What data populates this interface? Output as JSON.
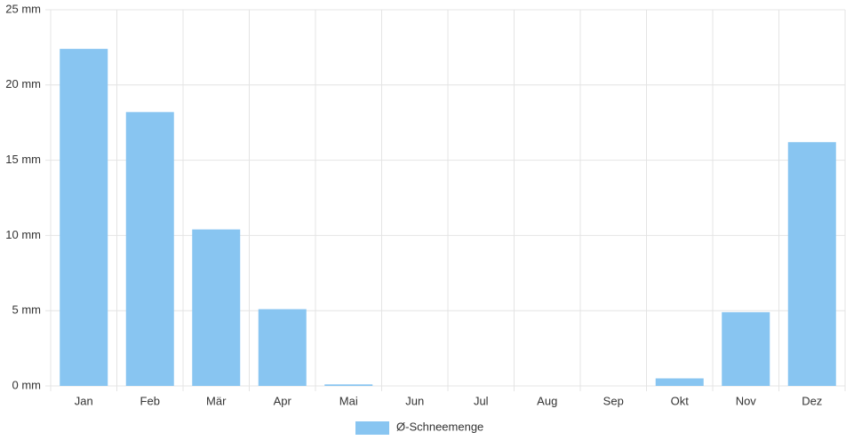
{
  "chart_data": {
    "type": "bar",
    "categories": [
      "Jan",
      "Feb",
      "Mär",
      "Apr",
      "Mai",
      "Jun",
      "Jul",
      "Aug",
      "Sep",
      "Okt",
      "Nov",
      "Dez"
    ],
    "series": [
      {
        "name": "Ø-Schneemenge",
        "color": "#88c5f1",
        "values": [
          22.4,
          18.2,
          10.4,
          5.1,
          0.1,
          0,
          0,
          0,
          0,
          0.5,
          4.9,
          16.2
        ]
      }
    ],
    "ylim": [
      0,
      25
    ],
    "yticks": [
      {
        "value": 0,
        "label": "0 mm"
      },
      {
        "value": 5,
        "label": "5 mm"
      },
      {
        "value": 10,
        "label": "10 mm"
      },
      {
        "value": 15,
        "label": "15 mm"
      },
      {
        "value": 20,
        "label": "20 mm"
      },
      {
        "value": 25,
        "label": "25 mm"
      }
    ],
    "grid": true,
    "legend": "bottom"
  }
}
